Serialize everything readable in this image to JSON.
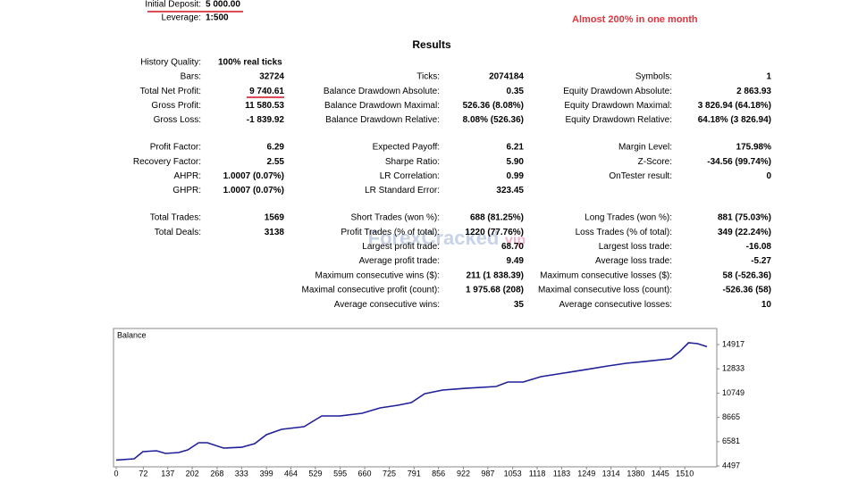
{
  "header": {
    "deposit_label": "Initial Deposit:",
    "deposit_value": "5 000.00",
    "leverage_label": "Leverage:",
    "leverage_value": "1:500",
    "note": "Almost 200% in one month",
    "title": "Results"
  },
  "history_quality": {
    "label": "History Quality:",
    "value": "100% real ticks"
  },
  "blocks": [
    [
      [
        [
          "Bars:",
          "32724"
        ],
        [
          "Total Net Profit:",
          "9 740.61"
        ],
        [
          "Gross Profit:",
          "11 580.53"
        ],
        [
          "Gross Loss:",
          "-1 839.92"
        ]
      ],
      [
        [
          "Ticks:",
          "2074184"
        ],
        [
          "Balance Drawdown Absolute:",
          "0.35"
        ],
        [
          "Balance Drawdown Maximal:",
          "526.36 (8.08%)"
        ],
        [
          "Balance Drawdown Relative:",
          "8.08% (526.36)"
        ]
      ],
      [
        [
          "Symbols:",
          "1"
        ],
        [
          "Equity Drawdown Absolute:",
          "2 863.93"
        ],
        [
          "Equity Drawdown Maximal:",
          "3 826.94 (64.18%)"
        ],
        [
          "Equity Drawdown Relative:",
          "64.18% (3 826.94)"
        ]
      ]
    ],
    [
      [
        [
          "Profit Factor:",
          "6.29"
        ],
        [
          "Recovery Factor:",
          "2.55"
        ],
        [
          "AHPR:",
          "1.0007 (0.07%)"
        ],
        [
          "GHPR:",
          "1.0007 (0.07%)"
        ]
      ],
      [
        [
          "Expected Payoff:",
          "6.21"
        ],
        [
          "Sharpe Ratio:",
          "5.90"
        ],
        [
          "LR Correlation:",
          "0.99"
        ],
        [
          "LR Standard Error:",
          "323.45"
        ]
      ],
      [
        [
          "Margin Level:",
          "175.98%"
        ],
        [
          "Z-Score:",
          "-34.56 (99.74%)"
        ],
        [
          "OnTester result:",
          "0"
        ]
      ]
    ],
    [
      [
        [
          "Total Trades:",
          "1569"
        ],
        [
          "Total Deals:",
          "3138"
        ]
      ],
      [
        [
          "Short Trades (won %):",
          "688 (81.25%)"
        ],
        [
          "Profit Trades (% of total):",
          "1220 (77.76%)"
        ],
        [
          "Largest profit trade:",
          "68.70"
        ],
        [
          "Average profit trade:",
          "9.49"
        ],
        [
          "Maximum consecutive wins ($):",
          "211 (1 838.39)"
        ],
        [
          "Maximal consecutive profit (count):",
          "1 975.68 (208)"
        ],
        [
          "Average consecutive wins:",
          "35"
        ]
      ],
      [
        [
          "Long Trades (won %):",
          "881 (75.03%)"
        ],
        [
          "Loss Trades (% of total):",
          "349 (22.24%)"
        ],
        [
          "Largest loss trade:",
          "-16.08"
        ],
        [
          "Average loss trade:",
          "-5.27"
        ],
        [
          "Maximum consecutive losses ($):",
          "58 (-526.36)"
        ],
        [
          "Maximal consecutive loss (count):",
          "-526.36 (58)"
        ],
        [
          "Average consecutive losses:",
          "10"
        ]
      ]
    ]
  ],
  "watermark": {
    "main": "ForexCracked",
    "suffix": "vip"
  },
  "chart_data": {
    "type": "line",
    "title": "Balance",
    "color": "#1f1f9a",
    "x": [
      0,
      48,
      71,
      107,
      131,
      166,
      190,
      219,
      242,
      285,
      333,
      368,
      399,
      439,
      499,
      546,
      594,
      653,
      701,
      748,
      784,
      819,
      867,
      926,
      1009,
      1040,
      1081,
      1128,
      1188,
      1247,
      1306,
      1354,
      1401,
      1473,
      1496,
      1520,
      1544,
      1569
    ],
    "values": [
      5000,
      5110,
      5720,
      5800,
      5570,
      5650,
      5880,
      6490,
      6490,
      6030,
      6100,
      6410,
      7180,
      7640,
      7870,
      8790,
      8790,
      9020,
      9480,
      9710,
      9940,
      10700,
      11010,
      11160,
      11320,
      11700,
      11700,
      12160,
      12470,
      12770,
      13080,
      13310,
      13460,
      13700,
      14300,
      15070,
      15000,
      14740
    ],
    "xlim": [
      0,
      1595
    ],
    "ylim": [
      4420,
      16300
    ],
    "xticks": [
      0,
      72,
      137,
      202,
      268,
      333,
      399,
      464,
      529,
      595,
      660,
      725,
      791,
      856,
      922,
      987,
      1053,
      1118,
      1183,
      1249,
      1314,
      1380,
      1445,
      1510
    ],
    "yticks": [
      4497,
      6581,
      8665,
      10749,
      12833,
      14917
    ]
  }
}
